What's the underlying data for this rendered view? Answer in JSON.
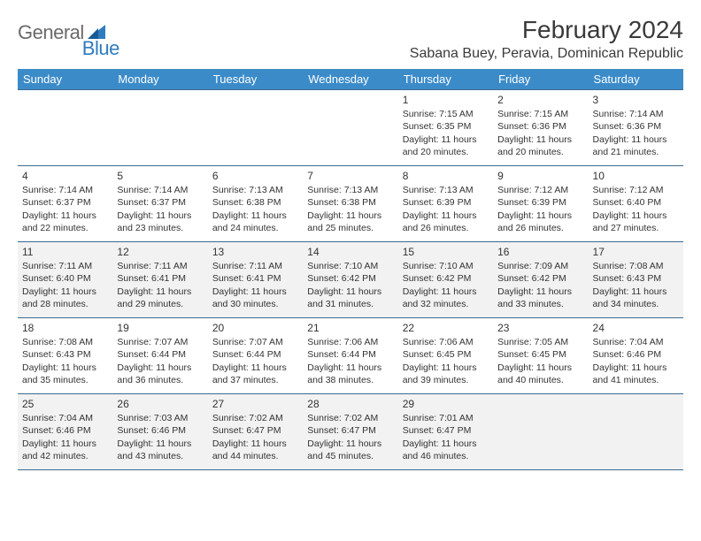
{
  "logo": {
    "general": "General",
    "blue": "Blue"
  },
  "title": "February 2024",
  "location": "Sabana Buey, Peravia, Dominican Republic",
  "colors": {
    "header_bg": "#3b8bc9",
    "header_text": "#ffffff",
    "row_border": "#3b6a8f",
    "alt_row_bg": "#f2f2f2",
    "text": "#333333",
    "logo_gray": "#6a6a6a",
    "logo_blue": "#2f7bbf"
  },
  "weekdays": [
    "Sunday",
    "Monday",
    "Tuesday",
    "Wednesday",
    "Thursday",
    "Friday",
    "Saturday"
  ],
  "weeks": [
    [
      null,
      null,
      null,
      null,
      {
        "n": "1",
        "sr": "Sunrise: 7:15 AM",
        "ss": "Sunset: 6:35 PM",
        "dl1": "Daylight: 11 hours",
        "dl2": "and 20 minutes."
      },
      {
        "n": "2",
        "sr": "Sunrise: 7:15 AM",
        "ss": "Sunset: 6:36 PM",
        "dl1": "Daylight: 11 hours",
        "dl2": "and 20 minutes."
      },
      {
        "n": "3",
        "sr": "Sunrise: 7:14 AM",
        "ss": "Sunset: 6:36 PM",
        "dl1": "Daylight: 11 hours",
        "dl2": "and 21 minutes."
      }
    ],
    [
      {
        "n": "4",
        "sr": "Sunrise: 7:14 AM",
        "ss": "Sunset: 6:37 PM",
        "dl1": "Daylight: 11 hours",
        "dl2": "and 22 minutes."
      },
      {
        "n": "5",
        "sr": "Sunrise: 7:14 AM",
        "ss": "Sunset: 6:37 PM",
        "dl1": "Daylight: 11 hours",
        "dl2": "and 23 minutes."
      },
      {
        "n": "6",
        "sr": "Sunrise: 7:13 AM",
        "ss": "Sunset: 6:38 PM",
        "dl1": "Daylight: 11 hours",
        "dl2": "and 24 minutes."
      },
      {
        "n": "7",
        "sr": "Sunrise: 7:13 AM",
        "ss": "Sunset: 6:38 PM",
        "dl1": "Daylight: 11 hours",
        "dl2": "and 25 minutes."
      },
      {
        "n": "8",
        "sr": "Sunrise: 7:13 AM",
        "ss": "Sunset: 6:39 PM",
        "dl1": "Daylight: 11 hours",
        "dl2": "and 26 minutes."
      },
      {
        "n": "9",
        "sr": "Sunrise: 7:12 AM",
        "ss": "Sunset: 6:39 PM",
        "dl1": "Daylight: 11 hours",
        "dl2": "and 26 minutes."
      },
      {
        "n": "10",
        "sr": "Sunrise: 7:12 AM",
        "ss": "Sunset: 6:40 PM",
        "dl1": "Daylight: 11 hours",
        "dl2": "and 27 minutes."
      }
    ],
    [
      {
        "n": "11",
        "sr": "Sunrise: 7:11 AM",
        "ss": "Sunset: 6:40 PM",
        "dl1": "Daylight: 11 hours",
        "dl2": "and 28 minutes."
      },
      {
        "n": "12",
        "sr": "Sunrise: 7:11 AM",
        "ss": "Sunset: 6:41 PM",
        "dl1": "Daylight: 11 hours",
        "dl2": "and 29 minutes."
      },
      {
        "n": "13",
        "sr": "Sunrise: 7:11 AM",
        "ss": "Sunset: 6:41 PM",
        "dl1": "Daylight: 11 hours",
        "dl2": "and 30 minutes."
      },
      {
        "n": "14",
        "sr": "Sunrise: 7:10 AM",
        "ss": "Sunset: 6:42 PM",
        "dl1": "Daylight: 11 hours",
        "dl2": "and 31 minutes."
      },
      {
        "n": "15",
        "sr": "Sunrise: 7:10 AM",
        "ss": "Sunset: 6:42 PM",
        "dl1": "Daylight: 11 hours",
        "dl2": "and 32 minutes."
      },
      {
        "n": "16",
        "sr": "Sunrise: 7:09 AM",
        "ss": "Sunset: 6:42 PM",
        "dl1": "Daylight: 11 hours",
        "dl2": "and 33 minutes."
      },
      {
        "n": "17",
        "sr": "Sunrise: 7:08 AM",
        "ss": "Sunset: 6:43 PM",
        "dl1": "Daylight: 11 hours",
        "dl2": "and 34 minutes."
      }
    ],
    [
      {
        "n": "18",
        "sr": "Sunrise: 7:08 AM",
        "ss": "Sunset: 6:43 PM",
        "dl1": "Daylight: 11 hours",
        "dl2": "and 35 minutes."
      },
      {
        "n": "19",
        "sr": "Sunrise: 7:07 AM",
        "ss": "Sunset: 6:44 PM",
        "dl1": "Daylight: 11 hours",
        "dl2": "and 36 minutes."
      },
      {
        "n": "20",
        "sr": "Sunrise: 7:07 AM",
        "ss": "Sunset: 6:44 PM",
        "dl1": "Daylight: 11 hours",
        "dl2": "and 37 minutes."
      },
      {
        "n": "21",
        "sr": "Sunrise: 7:06 AM",
        "ss": "Sunset: 6:44 PM",
        "dl1": "Daylight: 11 hours",
        "dl2": "and 38 minutes."
      },
      {
        "n": "22",
        "sr": "Sunrise: 7:06 AM",
        "ss": "Sunset: 6:45 PM",
        "dl1": "Daylight: 11 hours",
        "dl2": "and 39 minutes."
      },
      {
        "n": "23",
        "sr": "Sunrise: 7:05 AM",
        "ss": "Sunset: 6:45 PM",
        "dl1": "Daylight: 11 hours",
        "dl2": "and 40 minutes."
      },
      {
        "n": "24",
        "sr": "Sunrise: 7:04 AM",
        "ss": "Sunset: 6:46 PM",
        "dl1": "Daylight: 11 hours",
        "dl2": "and 41 minutes."
      }
    ],
    [
      {
        "n": "25",
        "sr": "Sunrise: 7:04 AM",
        "ss": "Sunset: 6:46 PM",
        "dl1": "Daylight: 11 hours",
        "dl2": "and 42 minutes."
      },
      {
        "n": "26",
        "sr": "Sunrise: 7:03 AM",
        "ss": "Sunset: 6:46 PM",
        "dl1": "Daylight: 11 hours",
        "dl2": "and 43 minutes."
      },
      {
        "n": "27",
        "sr": "Sunrise: 7:02 AM",
        "ss": "Sunset: 6:47 PM",
        "dl1": "Daylight: 11 hours",
        "dl2": "and 44 minutes."
      },
      {
        "n": "28",
        "sr": "Sunrise: 7:02 AM",
        "ss": "Sunset: 6:47 PM",
        "dl1": "Daylight: 11 hours",
        "dl2": "and 45 minutes."
      },
      {
        "n": "29",
        "sr": "Sunrise: 7:01 AM",
        "ss": "Sunset: 6:47 PM",
        "dl1": "Daylight: 11 hours",
        "dl2": "and 46 minutes."
      },
      null,
      null
    ]
  ]
}
